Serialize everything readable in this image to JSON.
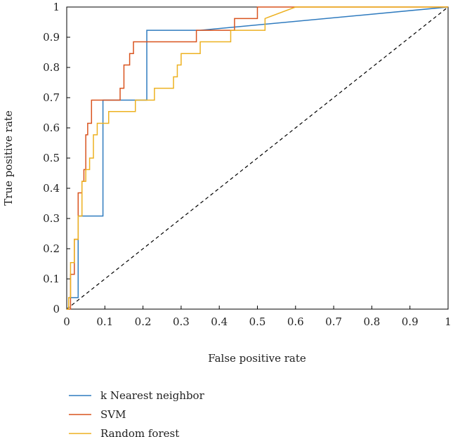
{
  "chart_data": {
    "type": "line",
    "title": "",
    "xlabel": "False positive rate",
    "ylabel": "True positive rate",
    "xlim": [
      0,
      1
    ],
    "ylim": [
      0,
      1
    ],
    "xticks": [
      "0",
      "0.1",
      "0.2",
      "0.3",
      "0.4",
      "0.5",
      "0.6",
      "0.7",
      "0.8",
      "0.9",
      "1"
    ],
    "yticks": [
      "0",
      "0.1",
      "0.2",
      "0.3",
      "0.4",
      "0.5",
      "0.6",
      "0.7",
      "0.8",
      "0.9",
      "1"
    ],
    "grid": false,
    "legend_position": "bottom",
    "series": [
      {
        "name": "k Nearest neighbor",
        "color": "#2f7bbf",
        "x": [
          0,
          0.005,
          0.005,
          0.03,
          0.03,
          0.095,
          0.095,
          0.21,
          0.21,
          0.35,
          1
        ],
        "y": [
          0,
          0,
          0.038,
          0.038,
          0.308,
          0.308,
          0.692,
          0.692,
          0.923,
          0.923,
          1
        ]
      },
      {
        "name": "SVM",
        "color": "#d9531e",
        "x": [
          0,
          0.01,
          0.01,
          0.02,
          0.02,
          0.03,
          0.03,
          0.04,
          0.04,
          0.045,
          0.045,
          0.05,
          0.05,
          0.055,
          0.055,
          0.065,
          0.065,
          0.14,
          0.14,
          0.15,
          0.15,
          0.165,
          0.165,
          0.175,
          0.175,
          0.215,
          0.215,
          0.34,
          0.34,
          0.44,
          0.44,
          0.5,
          0.5,
          1
        ],
        "y": [
          0,
          0,
          0.115,
          0.115,
          0.231,
          0.231,
          0.385,
          0.385,
          0.423,
          0.423,
          0.462,
          0.462,
          0.577,
          0.577,
          0.615,
          0.615,
          0.692,
          0.692,
          0.731,
          0.731,
          0.808,
          0.808,
          0.846,
          0.846,
          0.885,
          0.885,
          0.885,
          0.885,
          0.923,
          0.923,
          0.962,
          0.962,
          1,
          1
        ]
      },
      {
        "name": "Random forest",
        "color": "#edb120",
        "x": [
          0,
          0.005,
          0.005,
          0.01,
          0.01,
          0.02,
          0.02,
          0.03,
          0.03,
          0.04,
          0.04,
          0.05,
          0.05,
          0.06,
          0.06,
          0.07,
          0.07,
          0.08,
          0.08,
          0.11,
          0.11,
          0.18,
          0.18,
          0.22,
          0.22,
          0.23,
          0.23,
          0.28,
          0.28,
          0.29,
          0.29,
          0.3,
          0.3,
          0.33,
          0.33,
          0.35,
          0.35,
          0.37,
          0.37,
          0.43,
          0.43,
          0.44,
          0.44,
          0.52,
          0.52,
          0.6,
          1
        ],
        "y": [
          0,
          0,
          0.038,
          0.038,
          0.154,
          0.154,
          0.231,
          0.231,
          0.308,
          0.308,
          0.423,
          0.423,
          0.462,
          0.462,
          0.5,
          0.5,
          0.577,
          0.577,
          0.615,
          0.615,
          0.654,
          0.654,
          0.692,
          0.692,
          0.692,
          0.692,
          0.731,
          0.731,
          0.769,
          0.769,
          0.808,
          0.808,
          0.846,
          0.846,
          0.846,
          0.846,
          0.885,
          0.885,
          0.885,
          0.885,
          0.923,
          0.923,
          0.923,
          0.923,
          0.962,
          1,
          1
        ]
      }
    ],
    "reference_line": {
      "x": [
        0,
        1
      ],
      "y": [
        0,
        1
      ],
      "style": "dashed",
      "color": "#000000"
    }
  }
}
